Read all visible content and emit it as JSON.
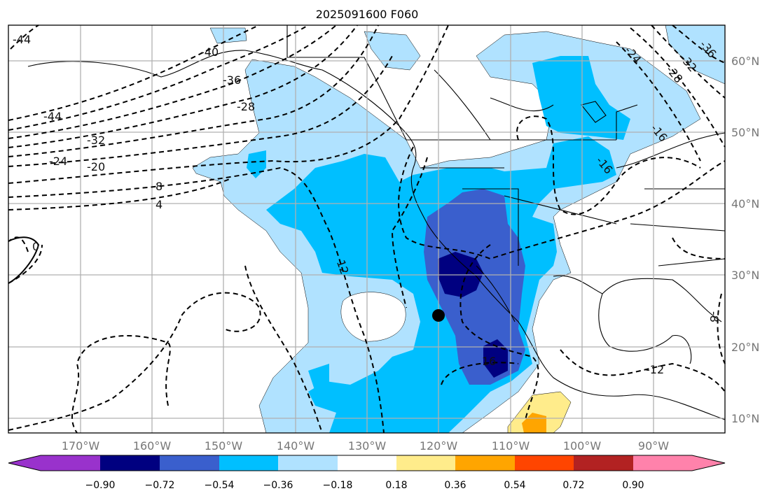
{
  "title": "2025091600 F060",
  "lon_labels": [
    "170°W",
    "160°W",
    "150°W",
    "140°W",
    "130°W",
    "120°W",
    "110°W",
    "100°W",
    "90°W"
  ],
  "lat_labels": [
    "60°N",
    "50°N",
    "40°N",
    "30°N",
    "20°N",
    "10°N"
  ],
  "colorbar": {
    "ticks": [
      "−0.90",
      "−0.72",
      "−0.54",
      "−0.36",
      "−0.18",
      "0.18",
      "0.36",
      "0.54",
      "0.72",
      "0.90"
    ],
    "colors": [
      "#9932cc",
      "#000080",
      "#3a5fcd",
      "#00bfff",
      "#b0e2ff",
      "#ffffff",
      "#ffec8b",
      "#ffa500",
      "#ff4500",
      "#b22222",
      "#ff82ab"
    ]
  },
  "contour_labels": [
    "-44",
    "-40",
    "-36",
    "-28",
    "-44",
    "-32",
    "-24",
    "-20",
    "8",
    "4",
    "0",
    "12",
    "16",
    "-16",
    "-24",
    "-28",
    "-32",
    "-36",
    "-16",
    "-6",
    "-8",
    "-12",
    "4"
  ],
  "marker": {
    "lon": -120,
    "lat": 24.5
  }
}
